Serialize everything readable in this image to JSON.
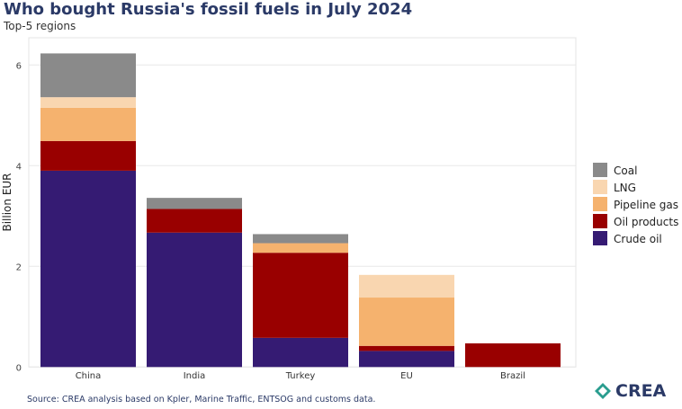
{
  "title": "Who bought Russia's fossil fuels in July 2024",
  "subtitle": "Top-5 regions",
  "source": "Source: CREA analysis based on Kpler, Marine Traffic, ENTSOG and customs data.",
  "logo_text": "CREA",
  "chart_data": {
    "type": "bar",
    "stacked": true,
    "categories": [
      "China",
      "India",
      "Turkey",
      "EU",
      "Brazil"
    ],
    "ylabel": "Billion EUR",
    "xlabel": "",
    "ylim": [
      0,
      6.5
    ],
    "yticks": [
      0,
      2,
      4,
      6
    ],
    "grid": true,
    "legend_position": "right",
    "series": [
      {
        "name": "Crude oil",
        "color": "#351b73",
        "values": [
          3.9,
          2.67,
          0.58,
          0.32,
          0
        ]
      },
      {
        "name": "Oil products",
        "color": "#990000",
        "values": [
          0.59,
          0.47,
          1.69,
          0.1,
          0.47
        ]
      },
      {
        "name": "Pipeline gas",
        "color": "#f5b26e",
        "values": [
          0.66,
          0,
          0.19,
          0.96,
          0
        ]
      },
      {
        "name": "LNG",
        "color": "#f9d6b0",
        "values": [
          0.21,
          0,
          0,
          0.45,
          0
        ]
      },
      {
        "name": "Coal",
        "color": "#8a8a8a",
        "values": [
          0.87,
          0.22,
          0.18,
          0,
          0
        ]
      }
    ]
  }
}
